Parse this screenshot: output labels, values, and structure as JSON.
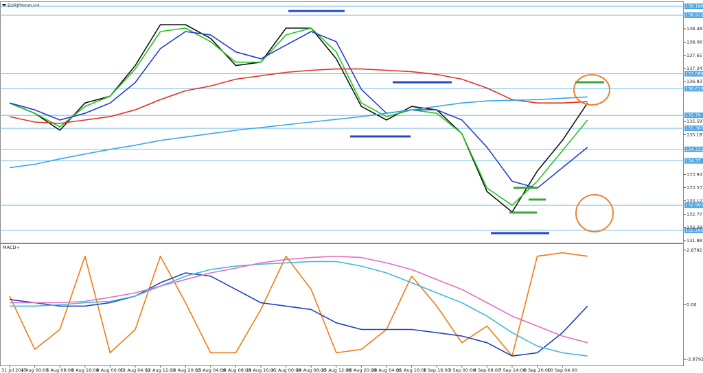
{
  "chart_data": [
    {
      "type": "line",
      "title": "EURJPYmm,H4",
      "ylim": [
        131.82,
        139.32
      ],
      "yticks": [
        138.487,
        138.067,
        137.657,
        137.247,
        136.837,
        135.597,
        135.187,
        133.947,
        133.537,
        133.127,
        132.707,
        132.297,
        131.887
      ],
      "levels": [
        139.188,
        138.912,
        137.086,
        136.619,
        135.79,
        135.387,
        134.731,
        134.37,
        132.991,
        132.206
      ],
      "level_color": "#7fbfea",
      "series": [
        {
          "color": "#111111",
          "values": [
            136.174,
            135.855,
            135.325,
            136.174,
            136.386,
            137.341,
            138.614,
            138.614,
            138.19,
            137.341,
            137.447,
            138.508,
            138.508,
            137.553,
            136.068,
            135.644,
            136.068,
            135.961,
            135.219,
            133.415,
            132.778,
            134.052,
            135.007,
            136.174
          ]
        },
        {
          "color": "#22c322",
          "values": [
            136.174,
            135.855,
            135.431,
            136.068,
            136.386,
            137.235,
            138.402,
            138.508,
            138.084,
            137.447,
            137.447,
            138.296,
            138.508,
            137.766,
            136.174,
            135.75,
            135.961,
            135.855,
            135.219,
            133.521,
            132.991,
            133.734,
            134.689,
            135.644
          ]
        },
        {
          "color": "#1f3fd0",
          "values": [
            136.174,
            135.961,
            135.644,
            135.855,
            136.174,
            136.811,
            137.872,
            138.402,
            138.296,
            137.766,
            137.553,
            137.978,
            138.402,
            138.084,
            136.598,
            135.855,
            135.961,
            135.961,
            135.644,
            134.795,
            133.734,
            133.521,
            134.158,
            134.795
          ]
        },
        {
          "color": "#e03020",
          "values": [
            135.75,
            135.58,
            135.537,
            135.644,
            135.75,
            135.961,
            136.28,
            136.556,
            136.705,
            136.917,
            137.023,
            137.129,
            137.193,
            137.235,
            137.235,
            137.193,
            137.15,
            137.065,
            136.917,
            136.641,
            136.28,
            136.174,
            136.174,
            136.216
          ]
        },
        {
          "color": "#39a8e8",
          "values": [
            134.158,
            134.265,
            134.434,
            134.583,
            134.731,
            134.858,
            135.007,
            135.113,
            135.219,
            135.325,
            135.41,
            135.495,
            135.58,
            135.665,
            135.75,
            135.855,
            135.961,
            136.068,
            136.174,
            136.238,
            136.259,
            136.28,
            136.323,
            136.365
          ]
        }
      ]
    },
    {
      "type": "line",
      "title": "MACD+",
      "ylim": [
        -3.2,
        3.2
      ],
      "yticks": [
        2.8792,
        {
          "value": 0,
          "label": "0.00"
        },
        -2.8792
      ],
      "categories": [
        "31 Jul 2015",
        "4 Aug 00:00",
        "5 Aug 08:00",
        "6 Aug 16:00",
        "8 Aug 00:00",
        "11 Aug 04:00",
        "12 Aug 12:00",
        "13 Aug 20:00",
        "15 Aug 04:00",
        "18 Aug 08:00",
        "19 Aug 16:00",
        "21 Aug 00:00",
        "24 Aug 08:00",
        "25 Aug 12:00",
        "26 Aug 20:00",
        "28 Aug 04:00",
        "31 Aug 10:00",
        "1 Sep 16:00",
        "3 Sep 00:00",
        "4 Sep 08:00",
        "7 Sep 14:00",
        "8 Sep 20:00",
        "10 Sep 04:00",
        null
      ],
      "series": [
        {
          "color": "#f07a10",
          "values": [
            0.46,
            -2.35,
            -1.3,
            2.56,
            -2.53,
            -1.3,
            2.56,
            0.11,
            -2.53,
            -2.53,
            -0.25,
            2.56,
            0.81,
            -2.53,
            -2.35,
            -1.3,
            1.51,
            -0.07,
            -2.0,
            -1.12,
            -2.7,
            2.56,
            2.74,
            2.56
          ]
        },
        {
          "color": "#2040c0",
          "values": [
            0.28,
            0.11,
            -0.07,
            -0.07,
            0.11,
            0.46,
            1.16,
            1.68,
            1.51,
            0.81,
            0.11,
            -0.07,
            -0.25,
            -0.95,
            -1.3,
            -1.3,
            -1.3,
            -1.47,
            -1.65,
            -2.0,
            -2.7,
            -2.53,
            -1.47,
            -0.07
          ]
        },
        {
          "color": "#40b8e0",
          "values": [
            -0.07,
            -0.07,
            0,
            0.11,
            0.18,
            0.46,
            0.98,
            1.51,
            1.86,
            2.04,
            2.14,
            2.21,
            2.28,
            2.28,
            2.04,
            1.68,
            1.16,
            0.63,
            0.11,
            -0.6,
            -1.47,
            -2.18,
            -2.53,
            -2.7
          ]
        },
        {
          "color": "#e070c0",
          "values": [
            0.11,
            0.11,
            0.11,
            0.18,
            0.39,
            0.63,
            0.98,
            1.33,
            1.68,
            1.93,
            2.21,
            2.39,
            2.49,
            2.56,
            2.49,
            2.21,
            1.86,
            1.33,
            0.81,
            0.11,
            -0.6,
            -1.12,
            -1.65,
            -2.0
          ]
        }
      ]
    }
  ]
}
